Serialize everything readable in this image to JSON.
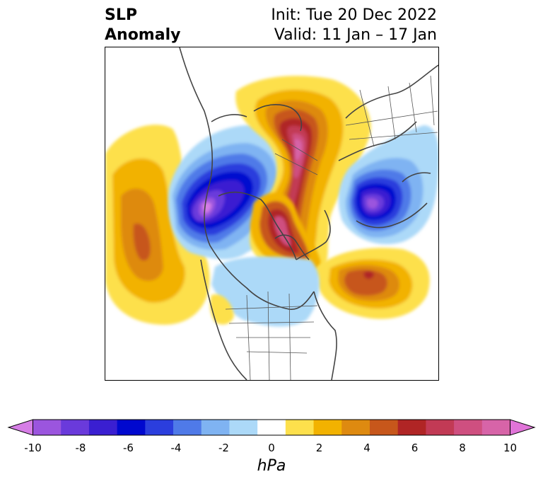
{
  "title": {
    "left_lines": [
      "SLP",
      "Anomaly"
    ],
    "right_lines": [
      "Init: Tue 20 Dec 2022",
      "Valid: 11 Jan – 17 Jan"
    ]
  },
  "colorbar": {
    "units": "hPa",
    "ticks": [
      "-10",
      "-8",
      "-6",
      "-4",
      "-2",
      "0",
      "2",
      "4",
      "6",
      "8",
      "10"
    ],
    "colors": [
      "#d67ee6",
      "#9b55de",
      "#6a3adb",
      "#3a1fd1",
      "#0008cf",
      "#2b3edd",
      "#4f7ae8",
      "#7fb3f2",
      "#acd9f8",
      "#ffffff",
      "#fde04c",
      "#f2b200",
      "#de8a10",
      "#c7571b",
      "#b02525",
      "#c23a55",
      "#cf4f80",
      "#d764a8",
      "#e074d8"
    ]
  },
  "map": {
    "region": "northern-hemisphere-polar",
    "features": [
      {
        "name": "north-pacific-positive-anomaly",
        "peak_hpa": 6
      },
      {
        "name": "west-canada-alaska-negative-anomaly",
        "peak_hpa": -9
      },
      {
        "name": "arctic-greenland-positive-anomaly",
        "peak_hpa": 8
      },
      {
        "name": "siberia-negative-anomaly",
        "peak_hpa": -8
      },
      {
        "name": "north-atlantic-positive-anomaly",
        "peak_hpa": 6
      }
    ]
  }
}
